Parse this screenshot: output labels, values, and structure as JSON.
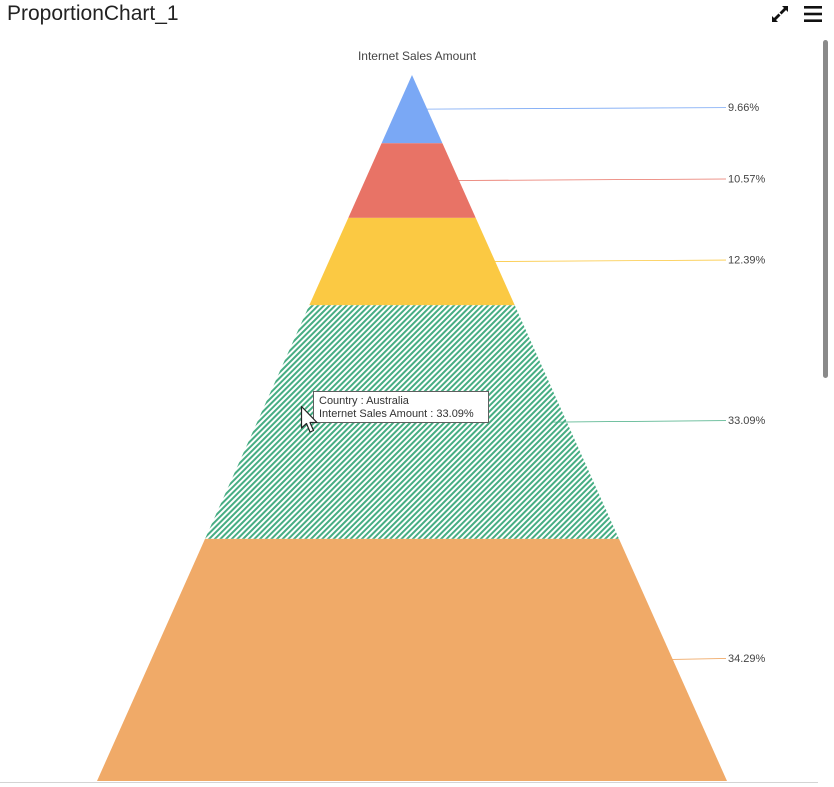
{
  "widget": {
    "title": "ProportionChart_1",
    "expand_icon": "expand-icon",
    "menu_icon": "hamburger-menu-icon"
  },
  "chart_data": {
    "type": "pyramid",
    "title": "Internet Sales Amount",
    "categories": [
      "",
      "",
      "",
      "Australia",
      ""
    ],
    "values": [
      9.66,
      10.57,
      12.39,
      33.09,
      34.29
    ],
    "labels": [
      "9.66%",
      "10.57%",
      "12.39%",
      "33.09%",
      "34.29%"
    ],
    "colors": [
      "#7aa8f5",
      "#e87366",
      "#fbc943",
      "#46ad83",
      "#f0aa68"
    ],
    "highlighted_index": 3,
    "legend": "none"
  },
  "tooltip": {
    "line1": "Country : Australia",
    "line2": "Internet Sales Amount : 33.09%"
  }
}
